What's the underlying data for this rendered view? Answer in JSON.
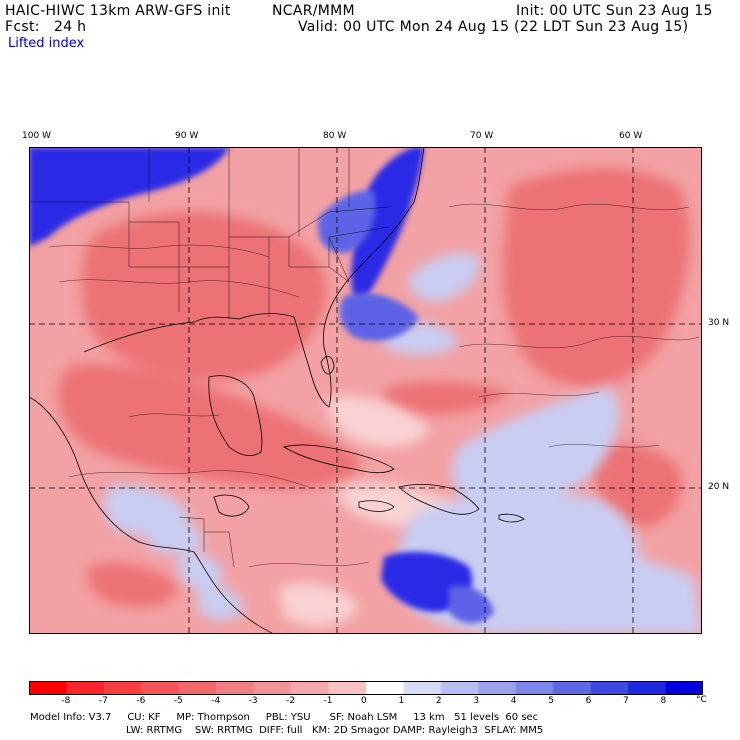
{
  "header": {
    "model": "HAIC-HIWC 13km ARW-GFS init",
    "org": "NCAR/MMM",
    "init": "Init: 00 UTC Sun 23 Aug 15",
    "fcst": "Fcst:   24 h",
    "valid": "Valid: 00 UTC Mon 24 Aug 15 (22 LDT Sun 23 Aug 15)",
    "field": "Lifted index"
  },
  "map": {
    "lon_labels": [
      "100 W",
      "90 W",
      "80 W",
      "70 W",
      "60 W"
    ],
    "lat_labels": [
      "30 N",
      "20 N"
    ],
    "colors": {
      "land_ocean_base": "#f1a3a4",
      "strong_red": "#ea6d71",
      "blue_stable": "#2a2ae6",
      "light_blue": "#c9cdf2",
      "outline": "#000000"
    }
  },
  "colorbar": {
    "tick_labels": [
      "-8",
      "-7",
      "-6",
      "-5",
      "-4",
      "-3",
      "-2",
      "-1",
      "0",
      "1",
      "2",
      "3",
      "4",
      "5",
      "6",
      "7",
      "8"
    ],
    "unit": "°C",
    "colors": [
      "#ff0000",
      "#f8262a",
      "#f53d42",
      "#f35458",
      "#f2696c",
      "#f27f82",
      "#f29497",
      "#f4aaac",
      "#f6c1c2",
      "#ffffff",
      "#d8dcf6",
      "#b9bff0",
      "#9aa2ec",
      "#7c85e8",
      "#5e68e4",
      "#3e49e2",
      "#1f2be0",
      "#0000dc"
    ]
  },
  "footer": {
    "line1": "Model Info: V3.7     CU: KF     MP: Thompson     PBL: YSU      SF: Noah LSM     13 km   51 levels  60 sec",
    "line2": "LW: RRTMG    SW: RRTMG  DIFF: full   KM: 2D Smagor DAMP: Rayleigh3  SFLAY: MM5"
  }
}
